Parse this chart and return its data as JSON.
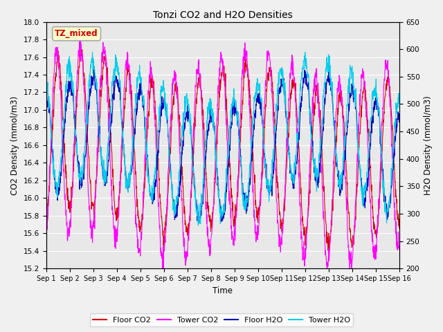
{
  "title": "Tonzi CO2 and H2O Densities",
  "xlabel": "Time",
  "ylabel_left": "CO2 Density (mmol/m3)",
  "ylabel_right": "H2O Density (mmol/m3)",
  "ylim_left": [
    15.2,
    18.0
  ],
  "ylim_right": [
    200,
    650
  ],
  "xtick_labels": [
    "Sep 1",
    "Sep 2",
    "Sep 3",
    "Sep 4",
    "Sep 5",
    "Sep 6",
    "Sep 7",
    "Sep 8",
    "Sep 9",
    "Sep 10",
    "Sep 11",
    "Sep 12",
    "Sep 13",
    "Sep 14",
    "Sep 15",
    "Sep 16"
  ],
  "annotation_text": "TZ_mixed",
  "annotation_bg": "#ffffcc",
  "annotation_border": "#aaaaaa",
  "annotation_text_color": "#cc0000",
  "colors": {
    "floor_co2": "#dd0000",
    "tower_co2": "#ff00ff",
    "floor_h2o": "#0000bb",
    "tower_h2o": "#00ccee"
  },
  "legend_labels": [
    "Floor CO2",
    "Tower CO2",
    "Floor H2O",
    "Tower H2O"
  ],
  "background_color": "#e8e8e8",
  "grid_color": "#ffffff",
  "n_days": 15,
  "pts_per_day": 96,
  "figsize": [
    6.4,
    4.8
  ],
  "dpi": 100
}
